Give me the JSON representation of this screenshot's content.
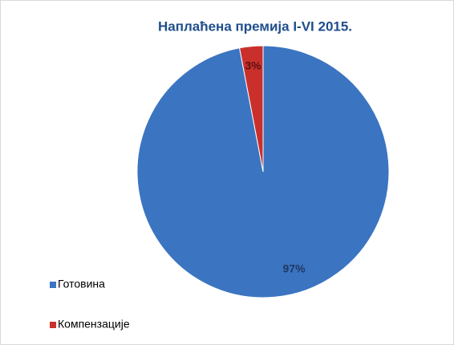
{
  "chart_data": {
    "type": "pie",
    "title": "Наплаћена премија I-VI 2015.",
    "categories": [
      "Готовина",
      "Компензације"
    ],
    "values": [
      97,
      3
    ],
    "value_labels": [
      "97%",
      "3%"
    ],
    "colors": [
      "#3b74c1",
      "#c9302c"
    ],
    "legend": "left"
  }
}
